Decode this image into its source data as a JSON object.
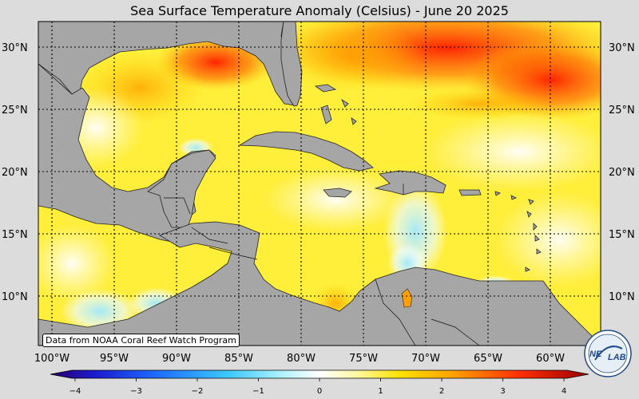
{
  "title": "Sea Surface Temperature Anomaly (Celsius) - June 20 2025",
  "map": {
    "lat_labels": [
      "30°N",
      "25°N",
      "20°N",
      "15°N",
      "10°N"
    ],
    "lon_labels": [
      "100°W",
      "95°W",
      "90°W",
      "85°W",
      "80°W",
      "75°W",
      "70°W",
      "65°W",
      "60°W"
    ],
    "land_color": "#a6a6a6",
    "ocean_base_color": "#ffff66"
  },
  "colorbar": {
    "ticks": [
      "−4",
      "−3",
      "−2",
      "−1",
      "0",
      "1",
      "2",
      "3",
      "4"
    ],
    "min": -4,
    "max": 4
  },
  "credit": "Data from NOAA Coral Reef Watch Program",
  "logo": {
    "text_left": "NE",
    "text_right": "LAB",
    "icon": "nesdis-star-lab-logo"
  }
}
